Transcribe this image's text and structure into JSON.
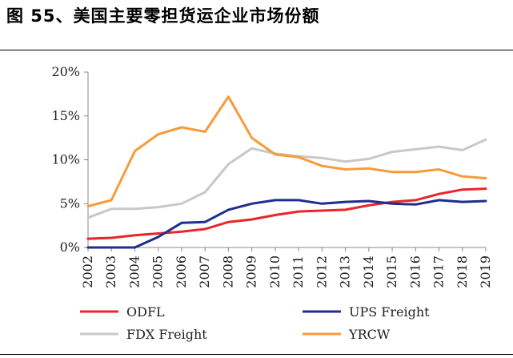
{
  "title": "图 55、美国主要零担货运企业市场份额",
  "chart_data": {
    "type": "line",
    "x": [
      "2002",
      "2003",
      "2004",
      "2005",
      "2006",
      "2007",
      "2008",
      "2009",
      "2010",
      "2011",
      "2012",
      "2013",
      "2014",
      "2015",
      "2016",
      "2017",
      "2018",
      "2019"
    ],
    "ylim": [
      0,
      20
    ],
    "yticks": [
      "0%",
      "5%",
      "10%",
      "15%",
      "20%"
    ],
    "grid": false,
    "legend_position": "bottom",
    "series": [
      {
        "name": "ODFL",
        "color": "#e8262a",
        "values": [
          1.0,
          1.1,
          1.4,
          1.6,
          1.8,
          2.1,
          2.9,
          3.2,
          3.7,
          4.1,
          4.2,
          4.3,
          4.8,
          5.2,
          5.4,
          6.1,
          6.6,
          6.7
        ]
      },
      {
        "name": "UPS Freight",
        "color": "#1f2e8c",
        "values": [
          0.0,
          0.0,
          0.0,
          1.2,
          2.8,
          2.9,
          4.3,
          5.0,
          5.4,
          5.4,
          5.0,
          5.2,
          5.3,
          5.0,
          4.9,
          5.4,
          5.2,
          5.3
        ]
      },
      {
        "name": "FDX Freight",
        "color": "#c8c8c8",
        "values": [
          3.4,
          4.4,
          4.4,
          4.6,
          5.0,
          6.3,
          9.5,
          11.3,
          10.7,
          10.4,
          10.2,
          9.8,
          10.1,
          10.9,
          11.2,
          11.5,
          11.1,
          12.3
        ]
      },
      {
        "name": "YRCW",
        "color": "#f79b3a",
        "values": [
          4.7,
          5.4,
          11.0,
          12.9,
          13.7,
          13.2,
          17.2,
          12.5,
          10.6,
          10.3,
          9.3,
          8.9,
          9.0,
          8.6,
          8.6,
          8.9,
          8.1,
          7.9
        ]
      }
    ]
  }
}
